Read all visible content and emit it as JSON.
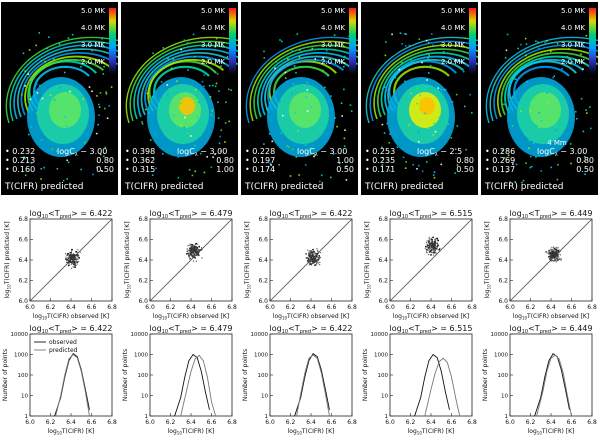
{
  "colorbar": {
    "labels": [
      "5.0 MK",
      "4.0 MK",
      "3.0 MK",
      "2.0 MK"
    ],
    "colors": [
      "#ff1a1a",
      "#d8d800",
      "#00d070",
      "#00a0ff",
      "#3030c0",
      "#000000"
    ]
  },
  "map_caption": "T(CIFR) predicted",
  "scale_bar_label": "4 Mm",
  "panels": [
    {
      "params": {
        "v1": "0.232",
        "v2": "0.213",
        "v3": "0.160",
        "log_c": "logC",
        "log_c_sub": "λ",
        "log_c_val": "− 3.00",
        "p2": "0.80",
        "p3": "0.50"
      },
      "mean_label": "log",
      "mean_value": "= 6.422",
      "scatter_points": [
        [
          6.36,
          6.4
        ],
        [
          6.4,
          6.38
        ],
        [
          6.42,
          6.45
        ],
        [
          6.44,
          6.41
        ],
        [
          6.38,
          6.35
        ],
        [
          6.45,
          6.48
        ],
        [
          6.41,
          6.43
        ],
        [
          6.39,
          6.42
        ],
        [
          6.43,
          6.36
        ],
        [
          6.46,
          6.44
        ],
        [
          6.37,
          6.46
        ],
        [
          6.42,
          6.39
        ],
        [
          6.4,
          6.47
        ],
        [
          6.44,
          6.33
        ],
        [
          6.35,
          6.41
        ],
        [
          6.48,
          6.42
        ],
        [
          6.41,
          6.5
        ],
        [
          6.43,
          6.44
        ],
        [
          6.38,
          6.39
        ],
        [
          6.46,
          6.38
        ]
      ],
      "hist_observed": [
        [
          6.24,
          1
        ],
        [
          6.3,
          8
        ],
        [
          6.34,
          80
        ],
        [
          6.38,
          500
        ],
        [
          6.42,
          1100
        ],
        [
          6.46,
          800
        ],
        [
          6.5,
          180
        ],
        [
          6.54,
          20
        ],
        [
          6.58,
          2
        ]
      ],
      "hist_predicted": [
        [
          6.25,
          1
        ],
        [
          6.3,
          10
        ],
        [
          6.34,
          100
        ],
        [
          6.38,
          600
        ],
        [
          6.42,
          1000
        ],
        [
          6.46,
          700
        ],
        [
          6.5,
          150
        ],
        [
          6.54,
          15
        ],
        [
          6.58,
          1
        ]
      ]
    },
    {
      "params": {
        "v1": "0.398",
        "v2": "0.362",
        "v3": "0.315",
        "log_c": "logC",
        "log_c_sub": "λ",
        "log_c_val": "− 3.00",
        "p2": "0.80",
        "p3": "1.00"
      },
      "mean_label": "log",
      "mean_value": "= 6.479",
      "scatter_points": [
        [
          6.4,
          6.46
        ],
        [
          6.44,
          6.5
        ],
        [
          6.42,
          6.43
        ],
        [
          6.46,
          6.52
        ],
        [
          6.38,
          6.44
        ],
        [
          6.45,
          6.47
        ],
        [
          6.41,
          6.55
        ],
        [
          6.43,
          6.49
        ],
        [
          6.47,
          6.45
        ],
        [
          6.39,
          6.51
        ],
        [
          6.44,
          6.42
        ],
        [
          6.48,
          6.53
        ],
        [
          6.42,
          6.48
        ],
        [
          6.36,
          6.46
        ],
        [
          6.45,
          6.56
        ],
        [
          6.41,
          6.44
        ],
        [
          6.5,
          6.5
        ],
        [
          6.43,
          6.52
        ],
        [
          6.46,
          6.47
        ],
        [
          6.4,
          6.49
        ]
      ],
      "hist_observed": [
        [
          6.24,
          1
        ],
        [
          6.3,
          8
        ],
        [
          6.34,
          80
        ],
        [
          6.38,
          500
        ],
        [
          6.42,
          1000
        ],
        [
          6.46,
          700
        ],
        [
          6.5,
          150
        ],
        [
          6.54,
          15
        ],
        [
          6.58,
          2
        ]
      ],
      "hist_predicted": [
        [
          6.3,
          1
        ],
        [
          6.36,
          20
        ],
        [
          6.4,
          150
        ],
        [
          6.44,
          600
        ],
        [
          6.48,
          900
        ],
        [
          6.52,
          500
        ],
        [
          6.56,
          80
        ],
        [
          6.6,
          5
        ],
        [
          6.64,
          1
        ]
      ]
    },
    {
      "params": {
        "v1": "0.228",
        "v2": "0.197",
        "v3": "0.174",
        "log_c": "logC",
        "log_c_sub": "λ",
        "log_c_val": "− 3.00",
        "p2": "1.00",
        "p3": "0.50"
      },
      "mean_label": "log",
      "mean_value": "= 6.422",
      "scatter_points": [
        [
          6.38,
          6.4
        ],
        [
          6.42,
          6.44
        ],
        [
          6.44,
          6.41
        ],
        [
          6.4,
          6.36
        ],
        [
          6.46,
          6.46
        ],
        [
          6.41,
          6.47
        ],
        [
          6.36,
          6.42
        ],
        [
          6.43,
          6.38
        ],
        [
          6.45,
          6.43
        ],
        [
          6.39,
          6.45
        ],
        [
          6.47,
          6.4
        ],
        [
          6.42,
          6.5
        ],
        [
          6.4,
          6.42
        ],
        [
          6.44,
          6.35
        ],
        [
          6.37,
          6.39
        ],
        [
          6.48,
          6.44
        ],
        [
          6.43,
          6.48
        ],
        [
          6.41,
          6.41
        ],
        [
          6.45,
          6.39
        ],
        [
          6.39,
          6.44
        ]
      ],
      "hist_observed": [
        [
          6.24,
          1
        ],
        [
          6.3,
          8
        ],
        [
          6.34,
          80
        ],
        [
          6.38,
          500
        ],
        [
          6.42,
          1100
        ],
        [
          6.46,
          800
        ],
        [
          6.5,
          180
        ],
        [
          6.54,
          20
        ],
        [
          6.58,
          2
        ]
      ],
      "hist_predicted": [
        [
          6.26,
          1
        ],
        [
          6.3,
          12
        ],
        [
          6.34,
          120
        ],
        [
          6.38,
          650
        ],
        [
          6.42,
          950
        ],
        [
          6.46,
          650
        ],
        [
          6.5,
          130
        ],
        [
          6.54,
          12
        ],
        [
          6.58,
          1
        ]
      ]
    },
    {
      "params": {
        "v1": "0.253",
        "v2": "0.235",
        "v3": "0.171",
        "log_c": "logC",
        "log_c_sub": "λ",
        "log_c_val": "− 2.5",
        "p2": "0.80",
        "p3": "0.50"
      },
      "mean_label": "log",
      "mean_value": "= 6.515",
      "scatter_points": [
        [
          6.38,
          6.52
        ],
        [
          6.42,
          6.55
        ],
        [
          6.4,
          6.49
        ],
        [
          6.44,
          6.58
        ],
        [
          6.36,
          6.5
        ],
        [
          6.46,
          6.53
        ],
        [
          6.41,
          6.6
        ],
        [
          6.43,
          6.47
        ],
        [
          6.39,
          6.56
        ],
        [
          6.45,
          6.51
        ],
        [
          6.37,
          6.54
        ],
        [
          6.48,
          6.5
        ],
        [
          6.42,
          6.62
        ],
        [
          6.4,
          6.45
        ],
        [
          6.44,
          6.57
        ],
        [
          6.35,
          6.53
        ],
        [
          6.47,
          6.59
        ],
        [
          6.43,
          6.52
        ],
        [
          6.39,
          6.48
        ],
        [
          6.41,
          6.56
        ],
        [
          6.46,
          6.61
        ],
        [
          6.38,
          6.58
        ]
      ],
      "hist_observed": [
        [
          6.24,
          1
        ],
        [
          6.3,
          8
        ],
        [
          6.34,
          80
        ],
        [
          6.38,
          500
        ],
        [
          6.42,
          1000
        ],
        [
          6.46,
          700
        ],
        [
          6.5,
          150
        ],
        [
          6.54,
          15
        ],
        [
          6.58,
          2
        ]
      ],
      "hist_predicted": [
        [
          6.34,
          1
        ],
        [
          6.4,
          20
        ],
        [
          6.44,
          120
        ],
        [
          6.48,
          450
        ],
        [
          6.52,
          650
        ],
        [
          6.56,
          400
        ],
        [
          6.6,
          80
        ],
        [
          6.64,
          8
        ],
        [
          6.68,
          1
        ]
      ]
    },
    {
      "params": {
        "v1": "0.286",
        "v2": "0.269",
        "v3": "0.137",
        "log_c": "logC",
        "log_c_sub": "λ",
        "log_c_val": "− 3.00",
        "p2": "0.80",
        "p3": "0.50"
      },
      "mean_label": "log",
      "mean_value": "= 6.449",
      "scatter_points": [
        [
          6.4,
          6.42
        ],
        [
          6.43,
          6.46
        ],
        [
          6.41,
          6.44
        ],
        [
          6.45,
          6.47
        ],
        [
          6.39,
          6.41
        ],
        [
          6.44,
          6.43
        ],
        [
          6.42,
          6.48
        ],
        [
          6.46,
          6.45
        ],
        [
          6.4,
          6.46
        ],
        [
          6.44,
          6.4
        ],
        [
          6.47,
          6.49
        ],
        [
          6.42,
          6.44
        ],
        [
          6.38,
          6.43
        ],
        [
          6.45,
          6.5
        ],
        [
          6.43,
          6.42
        ],
        [
          6.41,
          6.47
        ],
        [
          6.46,
          6.44
        ],
        [
          6.44,
          6.46
        ]
      ],
      "hist_observed": [
        [
          6.24,
          1
        ],
        [
          6.3,
          8
        ],
        [
          6.34,
          80
        ],
        [
          6.38,
          500
        ],
        [
          6.42,
          1100
        ],
        [
          6.46,
          800
        ],
        [
          6.5,
          180
        ],
        [
          6.54,
          20
        ],
        [
          6.58,
          2
        ]
      ],
      "hist_predicted": [
        [
          6.26,
          1
        ],
        [
          6.32,
          15
        ],
        [
          6.36,
          150
        ],
        [
          6.4,
          650
        ],
        [
          6.44,
          950
        ],
        [
          6.48,
          600
        ],
        [
          6.52,
          120
        ],
        [
          6.56,
          10
        ],
        [
          6.6,
          1
        ]
      ]
    }
  ],
  "chart_data": [
    {
      "type": "scatter",
      "xlabel": "log",
      "ylabel": "log",
      "xlim": [
        6.0,
        6.8
      ],
      "ylim": [
        6.0,
        6.8
      ],
      "x_ticks": [
        "6.0",
        "6.2",
        "6.4",
        "6.6",
        "6.8"
      ],
      "y_ticks": [
        "6.0",
        "6.2",
        "6.4",
        "6.6",
        "6.8"
      ],
      "x_title": "T(CIFR) observed",
      "y_title": "T(CIFR) predicted",
      "unit": "[K]"
    },
    {
      "type": "line",
      "xlabel": "log",
      "ylabel": "Number of points",
      "xlim": [
        6.0,
        6.8
      ],
      "ylim_log": [
        1,
        10000
      ],
      "x_ticks": [
        "6.0",
        "6.2",
        "6.4",
        "6.6",
        "6.8"
      ],
      "y_ticks": [
        "1",
        "10",
        "100",
        "1000",
        "10000"
      ],
      "x_title": "T(CIFR)",
      "unit": "[K]",
      "legend": [
        "observed",
        "predicted"
      ]
    }
  ]
}
